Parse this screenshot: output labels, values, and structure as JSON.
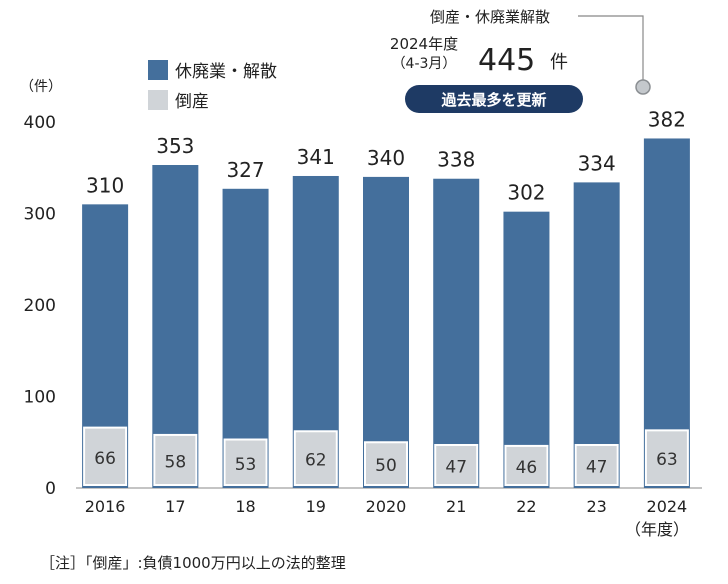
{
  "chart_data": {
    "type": "bar",
    "title": "",
    "ylabel": "（件）",
    "xlabel": "",
    "x_unit_label": "（年度）",
    "categories": [
      "2016",
      "17",
      "18",
      "19",
      "2020",
      "21",
      "22",
      "23",
      "2024"
    ],
    "series": [
      {
        "name": "休廃業・解散",
        "values": [
          310,
          353,
          327,
          341,
          340,
          338,
          302,
          334,
          382
        ],
        "color": "#446f9c"
      },
      {
        "name": "倒産",
        "values": [
          66,
          58,
          53,
          62,
          50,
          47,
          46,
          47,
          63
        ],
        "color": "#d0d4d8"
      }
    ],
    "ylim": [
      0,
      400
    ],
    "yticks": [
      0,
      100,
      200,
      300,
      400
    ],
    "grid": false,
    "legend_position": "top-left",
    "annotation": {
      "label": "倒産・休廃業解散",
      "period_line1": "2024年度",
      "period_line2": "（4-3月）",
      "value": "445",
      "unit": "件",
      "badge": "過去最多を更新",
      "badge_color": "#1e3a64"
    },
    "note": "［注］「倒産」:負債1000万円以上の法的整理"
  }
}
